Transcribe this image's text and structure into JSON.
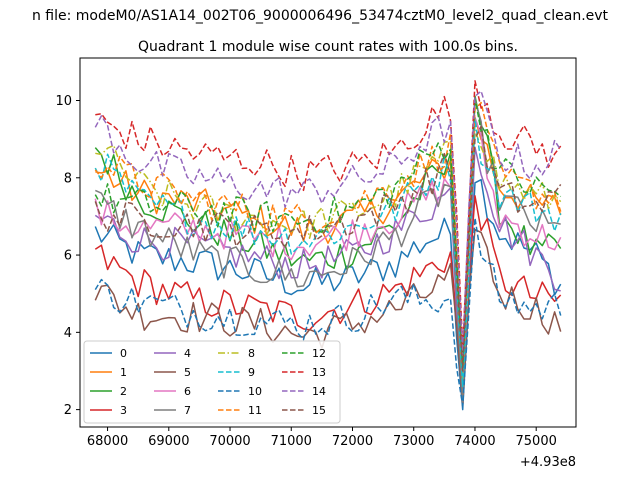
{
  "chart_data": {
    "type": "line",
    "suptitle": "n file: modeM0/AS1A14_002T06_9000006496_53474cztM0_level2_quad_clean.evt",
    "title": "Quadrant 1 module wise count rates with 100.0s bins.",
    "xlabel": "",
    "ylabel": "",
    "x_offset_label": "+4.93e8",
    "x_range": [
      67800,
      75400
    ],
    "xlim": [
      67550,
      75650
    ],
    "ylim": [
      1.55,
      11.1
    ],
    "x_ticks": [
      68000,
      69000,
      70000,
      71000,
      72000,
      73000,
      74000,
      75000
    ],
    "x_tick_labels": [
      "68000",
      "69000",
      "70000",
      "71000",
      "72000",
      "73000",
      "74000",
      "75000"
    ],
    "y_ticks": [
      2,
      4,
      6,
      8,
      10
    ],
    "y_tick_labels": [
      "2",
      "4",
      "6",
      "8",
      "10"
    ],
    "grid": false,
    "legend_position": "lower-left",
    "legend_columns": 4,
    "colors": {
      "c0": "#1f77b4",
      "c1": "#ff7f0e",
      "c2": "#2ca02c",
      "c3": "#d62728",
      "c4": "#9467bd",
      "c5": "#8c564b",
      "c6": "#e377c2",
      "c7": "#7f7f7f",
      "c8": "#bcbd22",
      "c9": "#17becf"
    },
    "series": [
      {
        "name": "0",
        "color": "#1f77b4",
        "dash": "solid",
        "profile": [
          [
            67800,
            6.6
          ],
          [
            68500,
            6.0
          ],
          [
            69500,
            5.8
          ],
          [
            70500,
            5.5
          ],
          [
            71200,
            5.2
          ],
          [
            72000,
            5.4
          ],
          [
            72700,
            5.8
          ],
          [
            73200,
            6.4
          ],
          [
            73600,
            6.6
          ],
          [
            73800,
            2.0
          ],
          [
            74000,
            8.2
          ],
          [
            74400,
            6.6
          ],
          [
            75000,
            6.0
          ],
          [
            75400,
            5.2
          ]
        ]
      },
      {
        "name": "1",
        "color": "#ff7f0e",
        "dash": "solid",
        "profile": [
          [
            67800,
            8.2
          ],
          [
            68500,
            7.6
          ],
          [
            69500,
            7.3
          ],
          [
            70500,
            6.9
          ],
          [
            71200,
            6.6
          ],
          [
            72000,
            6.9
          ],
          [
            72700,
            7.4
          ],
          [
            73200,
            8.0
          ],
          [
            73600,
            8.4
          ],
          [
            73800,
            2.3
          ],
          [
            74000,
            9.6
          ],
          [
            74400,
            7.8
          ],
          [
            75000,
            7.3
          ],
          [
            75400,
            7.2
          ]
        ]
      },
      {
        "name": "2",
        "color": "#2ca02c",
        "dash": "solid",
        "profile": [
          [
            67800,
            8.8
          ],
          [
            68500,
            7.5
          ],
          [
            69500,
            6.8
          ],
          [
            70500,
            6.2
          ],
          [
            71200,
            5.8
          ],
          [
            72000,
            6.1
          ],
          [
            72700,
            6.8
          ],
          [
            73200,
            7.8
          ],
          [
            73600,
            8.3
          ],
          [
            73800,
            2.5
          ],
          [
            74000,
            10.2
          ],
          [
            74400,
            7.2
          ],
          [
            75000,
            6.0
          ],
          [
            75400,
            6.2
          ]
        ]
      },
      {
        "name": "3",
        "color": "#d62728",
        "dash": "solid",
        "profile": [
          [
            67800,
            6.0
          ],
          [
            68500,
            5.3
          ],
          [
            69500,
            4.8
          ],
          [
            70500,
            4.6
          ],
          [
            71200,
            4.4
          ],
          [
            72000,
            4.7
          ],
          [
            72700,
            5.1
          ],
          [
            73200,
            5.6
          ],
          [
            73600,
            6.0
          ],
          [
            73800,
            2.6
          ],
          [
            74000,
            7.6
          ],
          [
            74400,
            5.4
          ],
          [
            75000,
            4.9
          ],
          [
            75400,
            4.8
          ]
        ]
      },
      {
        "name": "4",
        "color": "#9467bd",
        "dash": "solid",
        "profile": [
          [
            67800,
            7.0
          ],
          [
            68500,
            6.4
          ],
          [
            69500,
            6.2
          ],
          [
            70500,
            5.9
          ],
          [
            71200,
            5.7
          ],
          [
            72000,
            6.0
          ],
          [
            72700,
            6.6
          ],
          [
            73200,
            7.2
          ],
          [
            73600,
            7.6
          ],
          [
            73800,
            2.2
          ],
          [
            74000,
            9.0
          ],
          [
            74400,
            6.8
          ],
          [
            75000,
            6.0
          ],
          [
            75400,
            5.4
          ]
        ]
      },
      {
        "name": "5",
        "color": "#8c564b",
        "dash": "solid",
        "profile": [
          [
            67800,
            5.1
          ],
          [
            68500,
            4.5
          ],
          [
            69500,
            4.4
          ],
          [
            70500,
            4.2
          ],
          [
            71200,
            3.9
          ],
          [
            72000,
            4.2
          ],
          [
            72700,
            4.6
          ],
          [
            73200,
            5.0
          ],
          [
            73600,
            5.4
          ],
          [
            73800,
            2.1
          ],
          [
            74000,
            7.0
          ],
          [
            74400,
            5.0
          ],
          [
            75000,
            4.6
          ],
          [
            75400,
            4.2
          ]
        ]
      },
      {
        "name": "6",
        "color": "#e377c2",
        "dash": "solid",
        "profile": [
          [
            67800,
            7.1
          ],
          [
            68500,
            6.7
          ],
          [
            69500,
            6.7
          ],
          [
            70500,
            6.4
          ],
          [
            71200,
            6.3
          ],
          [
            72000,
            6.6
          ],
          [
            72700,
            7.0
          ],
          [
            73200,
            7.5
          ],
          [
            73600,
            7.8
          ],
          [
            73800,
            2.4
          ],
          [
            74000,
            9.3
          ],
          [
            74400,
            7.0
          ],
          [
            75000,
            6.5
          ],
          [
            75400,
            6.4
          ]
        ]
      },
      {
        "name": "7",
        "color": "#7f7f7f",
        "dash": "solid",
        "profile": [
          [
            67800,
            7.4
          ],
          [
            68500,
            6.7
          ],
          [
            69500,
            6.0
          ],
          [
            70500,
            5.6
          ],
          [
            71200,
            5.4
          ],
          [
            72000,
            5.8
          ],
          [
            72700,
            6.5
          ],
          [
            73200,
            7.3
          ],
          [
            73600,
            7.8
          ],
          [
            73800,
            2.2
          ],
          [
            74000,
            9.6
          ],
          [
            74400,
            7.5
          ],
          [
            75000,
            6.8
          ],
          [
            75400,
            6.6
          ]
        ]
      },
      {
        "name": "8",
        "color": "#bcbd22",
        "dash": "dashdot",
        "profile": [
          [
            67800,
            8.9
          ],
          [
            68500,
            7.8
          ],
          [
            69500,
            7.2
          ],
          [
            70500,
            6.9
          ],
          [
            71200,
            6.8
          ],
          [
            72000,
            7.1
          ],
          [
            72700,
            7.6
          ],
          [
            73200,
            8.2
          ],
          [
            73600,
            8.6
          ],
          [
            73800,
            2.8
          ],
          [
            74000,
            9.6
          ],
          [
            74400,
            7.9
          ],
          [
            75000,
            7.5
          ],
          [
            75400,
            7.4
          ]
        ]
      },
      {
        "name": "9",
        "color": "#17becf",
        "dash": "dashed",
        "profile": [
          [
            67800,
            8.5
          ],
          [
            68500,
            7.4
          ],
          [
            69500,
            6.9
          ],
          [
            70500,
            6.6
          ],
          [
            71200,
            6.4
          ],
          [
            72000,
            6.7
          ],
          [
            72700,
            7.2
          ],
          [
            73200,
            7.9
          ],
          [
            73600,
            8.3
          ],
          [
            73800,
            2.6
          ],
          [
            74000,
            9.2
          ],
          [
            74400,
            7.6
          ],
          [
            75000,
            7.2
          ],
          [
            75400,
            7.0
          ]
        ]
      },
      {
        "name": "10",
        "color": "#1f77b4",
        "dash": "dashed",
        "profile": [
          [
            67800,
            5.1
          ],
          [
            68500,
            4.8
          ],
          [
            69500,
            4.5
          ],
          [
            70500,
            4.3
          ],
          [
            71200,
            4.2
          ],
          [
            72000,
            4.4
          ],
          [
            72700,
            4.9
          ],
          [
            73200,
            4.8
          ],
          [
            73600,
            4.9
          ],
          [
            73800,
            2.1
          ],
          [
            74000,
            6.6
          ],
          [
            74400,
            4.9
          ],
          [
            75000,
            4.6
          ],
          [
            75400,
            4.7
          ]
        ]
      },
      {
        "name": "11",
        "color": "#ff7f0e",
        "dash": "dashed",
        "profile": [
          [
            67800,
            8.5
          ],
          [
            68500,
            7.9
          ],
          [
            69500,
            7.4
          ],
          [
            70500,
            7.1
          ],
          [
            71200,
            6.9
          ],
          [
            72000,
            7.3
          ],
          [
            72700,
            7.8
          ],
          [
            73200,
            8.4
          ],
          [
            73600,
            8.8
          ],
          [
            73800,
            3.2
          ],
          [
            74000,
            10.0
          ],
          [
            74400,
            8.0
          ],
          [
            75000,
            7.6
          ],
          [
            75400,
            7.5
          ]
        ]
      },
      {
        "name": "12",
        "color": "#2ca02c",
        "dash": "dashed",
        "profile": [
          [
            67800,
            7.5
          ],
          [
            68500,
            7.3
          ],
          [
            69500,
            7.2
          ],
          [
            70500,
            7.0
          ],
          [
            71200,
            6.9
          ],
          [
            72000,
            7.2
          ],
          [
            72700,
            7.7
          ],
          [
            73200,
            8.5
          ],
          [
            73600,
            9.0
          ],
          [
            73800,
            3.1
          ],
          [
            74000,
            10.1
          ],
          [
            74400,
            8.2
          ],
          [
            75000,
            7.7
          ],
          [
            75400,
            7.6
          ]
        ]
      },
      {
        "name": "13",
        "color": "#d62728",
        "dash": "dashed",
        "profile": [
          [
            67800,
            9.5
          ],
          [
            68500,
            9.0
          ],
          [
            69500,
            8.6
          ],
          [
            70500,
            8.4
          ],
          [
            71200,
            8.1
          ],
          [
            72000,
            8.3
          ],
          [
            72700,
            8.7
          ],
          [
            73200,
            9.4
          ],
          [
            73600,
            9.9
          ],
          [
            73800,
            3.6
          ],
          [
            74000,
            10.6
          ],
          [
            74400,
            9.2
          ],
          [
            75000,
            8.8
          ],
          [
            75400,
            8.5
          ]
        ]
      },
      {
        "name": "14",
        "color": "#9467bd",
        "dash": "dashed",
        "profile": [
          [
            67800,
            9.5
          ],
          [
            68500,
            8.4
          ],
          [
            69500,
            8.0
          ],
          [
            70500,
            7.7
          ],
          [
            71200,
            7.6
          ],
          [
            72000,
            7.9
          ],
          [
            72700,
            8.3
          ],
          [
            73200,
            9.0
          ],
          [
            73600,
            9.4
          ],
          [
            73800,
            3.4
          ],
          [
            74000,
            10.3
          ],
          [
            74400,
            8.6
          ],
          [
            75000,
            8.3
          ],
          [
            75400,
            8.7
          ]
        ]
      },
      {
        "name": "15",
        "color": "#8c564b",
        "dash": "dashed",
        "profile": [
          [
            67800,
            7.1
          ],
          [
            68500,
            6.9
          ],
          [
            69500,
            6.8
          ],
          [
            70500,
            6.6
          ],
          [
            71200,
            6.6
          ],
          [
            72000,
            6.9
          ],
          [
            72700,
            7.3
          ],
          [
            73200,
            7.9
          ],
          [
            73600,
            8.3
          ],
          [
            73800,
            3.0
          ],
          [
            74000,
            9.4
          ],
          [
            74400,
            7.6
          ],
          [
            75000,
            7.2
          ],
          [
            75400,
            7.6
          ]
        ]
      }
    ]
  }
}
